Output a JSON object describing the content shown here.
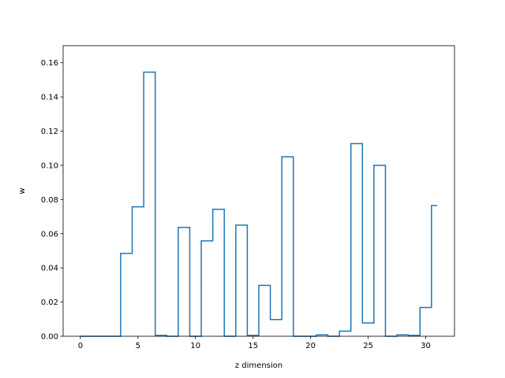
{
  "chart_data": {
    "type": "line",
    "drawstyle": "steps-mid",
    "title": "",
    "xlabel": "z dimension",
    "ylabel": "w",
    "xlim": [
      -1.5,
      32.5
    ],
    "ylim": [
      0,
      0.17
    ],
    "xticks": [
      0,
      5,
      10,
      15,
      20,
      25,
      30
    ],
    "xtick_labels": [
      "0",
      "5",
      "10",
      "15",
      "20",
      "25",
      "30"
    ],
    "yticks": [
      0,
      0.02,
      0.04,
      0.06,
      0.08,
      0.1,
      0.12,
      0.14,
      0.16
    ],
    "ytick_labels": [
      "0.00",
      "0.02",
      "0.04",
      "0.06",
      "0.08",
      "0.10",
      "0.12",
      "0.14",
      "0.16"
    ],
    "grid": false,
    "legend": "none",
    "color": "#1f77b4",
    "x": [
      0,
      1,
      2,
      3,
      4,
      5,
      6,
      7,
      8,
      9,
      10,
      11,
      12,
      13,
      14,
      15,
      16,
      17,
      18,
      19,
      20,
      21,
      22,
      23,
      24,
      25,
      26,
      27,
      28,
      29,
      30,
      31
    ],
    "values": [
      0.0,
      0.0,
      0.0,
      0.0,
      0.0485,
      0.0757,
      0.1545,
      0.0005,
      0.0,
      0.0637,
      0.0,
      0.0558,
      0.0743,
      0.0,
      0.065,
      0.0005,
      0.0298,
      0.0098,
      0.105,
      0.0,
      0.0,
      0.0008,
      0.0,
      0.003,
      0.1127,
      0.0078,
      0.1,
      0.0,
      0.0008,
      0.0005,
      0.0168,
      0.0765
    ]
  }
}
